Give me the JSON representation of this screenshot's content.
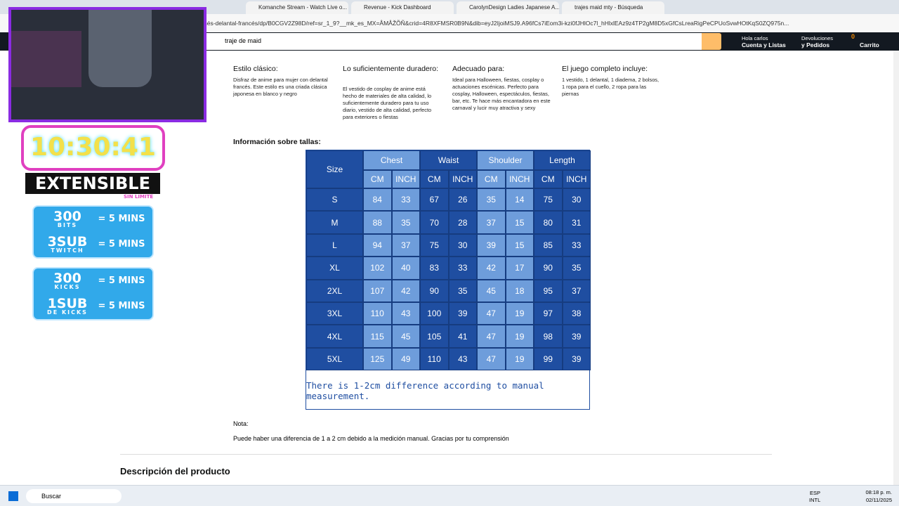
{
  "browser": {
    "tabs": [
      "Komanche Stream - Watch Live o...",
      "Revenue - Kick Dashboard",
      "CarolynDesign Ladies Japanese A...",
      "trajes maid mty - Búsqueda"
    ],
    "url": "nés-delantal-francés/dp/B0CGV2Z98D/ref=sr_1_9?__mk_es_MX=ÅMÅŽÕÑ&crid=4R8XFMSR0B9N&dib=eyJ2IjoiMSJ9.A96fCs7iEom3i-kzi0fJHlOc7l_hHlxlEAz9z4TP2gM8D5xGfCsLreaRigPeCPUoSvwHOtKqS0ZQ975n..."
  },
  "amazon_nav": {
    "search": "traje de maid",
    "greeting": "Hola carlos",
    "account": "Cuenta y Listas",
    "returns_1": "Devoluciones",
    "returns_2": "y Pedidos",
    "cart_count": "0",
    "cart": "Carrito"
  },
  "features": [
    {
      "title": "Estilo clásico:",
      "text": "Disfraz de anime para mujer con delantal francés. Este estilo es una criada clásica japonesa en blanco y negro"
    },
    {
      "title": "Lo suficientemente duradero:",
      "text": "El vestido de cosplay de anime está hecho de materiales de alta calidad, lo suficientemente duradero para tu uso diario, vestido de alta calidad, perfecto para exteriores o fiestas"
    },
    {
      "title": "Adecuado para:",
      "text": "Ideal para Halloween, fiestas, cosplay o actuaciones escénicas. Perfecto para cosplay, Halloween, espectáculos, fiestas, bar, etc. Te hace más encantadora en este carnaval y lucir muy atractiva y sexy"
    },
    {
      "title": "El juego completo incluye:",
      "text": "1 vestido, 1 delantal, 1 diadema, 2 bolsos, 1 ropa para el cuello, 2 ropa para las piernas"
    }
  ],
  "size_heading": "Información sobre tallas:",
  "size_table": {
    "size_header": "Size",
    "groups": [
      "Chest",
      "Waist",
      "Shoulder",
      "Length"
    ],
    "units": [
      "CM",
      "INCH",
      "CM",
      "INCH",
      "CM",
      "INCH",
      "CM",
      "INCH"
    ],
    "rows": [
      [
        "S",
        84,
        33,
        67,
        26,
        35,
        14,
        75,
        30
      ],
      [
        "M",
        88,
        35,
        70,
        28,
        37,
        15,
        80,
        31
      ],
      [
        "L",
        94,
        37,
        75,
        30,
        39,
        15,
        85,
        33
      ],
      [
        "XL",
        102,
        40,
        83,
        33,
        42,
        17,
        90,
        35
      ],
      [
        "2XL",
        107,
        42,
        90,
        35,
        45,
        18,
        95,
        37
      ],
      [
        "3XL",
        110,
        43,
        100,
        39,
        47,
        19,
        97,
        38
      ],
      [
        "4XL",
        115,
        45,
        105,
        41,
        47,
        19,
        98,
        39
      ],
      [
        "5XL",
        125,
        49,
        110,
        43,
        47,
        19,
        99,
        39
      ]
    ],
    "footnote": "There is 1-2cm difference according to manual measurement."
  },
  "note_label": "Nota:",
  "note_text": "Puede haber una diferencia de 1 a 2 cm debido a la medición manual. Gracias por tu comprensión",
  "description_heading": "Descripción del producto",
  "overlay": {
    "timer": "10:30:41",
    "extensible": "EXTENSIBLE",
    "sin_limite": "SIN LIMITE",
    "twitch": [
      {
        "big": "300",
        "small": "BITS",
        "rate": "= 5 MINS"
      },
      {
        "big": "3SUB",
        "small": "TWITCH",
        "rate": "= 5 MINS"
      }
    ],
    "kick": [
      {
        "big": "300",
        "small": "KICKS",
        "rate": "= 5 MINS"
      },
      {
        "big": "1SUB",
        "small": "DE KICKS",
        "rate": "= 5 MINS"
      }
    ]
  },
  "taskbar": {
    "search": "Buscar",
    "lang_1": "ESP",
    "lang_2": "INTL",
    "time": "08:18 p. m.",
    "date": "02/11/2025"
  }
}
